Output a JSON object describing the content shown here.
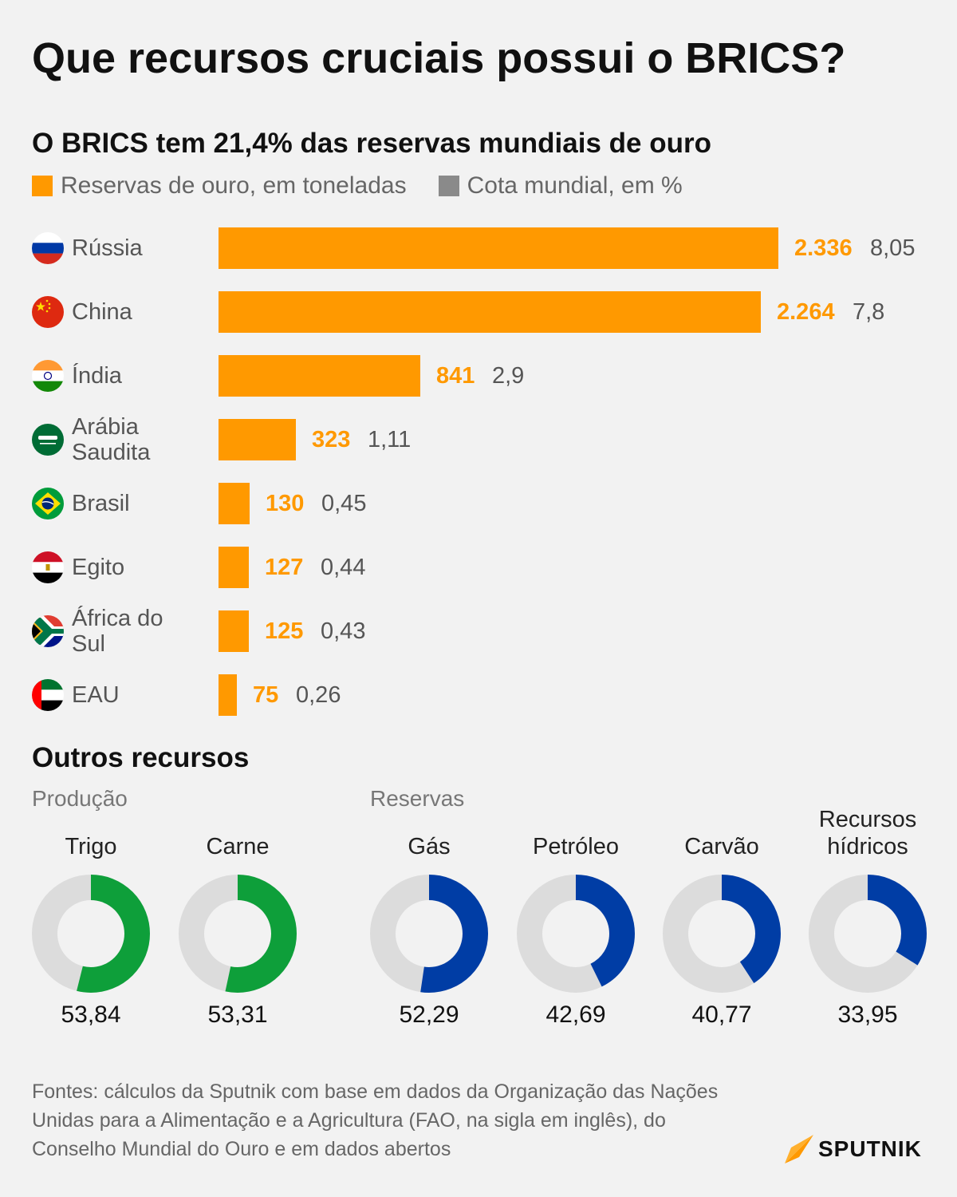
{
  "title": "Que recursos cruciais possui o BRICS?",
  "subtitle": "O BRICS tem 21,4% das reservas mundiais de ouro",
  "legend": {
    "reserves_label": "Reservas de ouro, em toneladas",
    "reserves_color": "#ff9900",
    "share_label": "Cota mundial, em %",
    "share_color": "#8a8a8a"
  },
  "chart_data": [
    {
      "type": "bar",
      "orientation": "horizontal",
      "title": "O BRICS tem 21,4% das reservas mundiais de ouro",
      "categories": [
        "Rússia",
        "China",
        "Índia",
        "Arábia Saudita",
        "Brasil",
        "Egito",
        "África do Sul",
        "EAU"
      ],
      "series": [
        {
          "name": "Reservas de ouro, em toneladas",
          "values": [
            2336,
            2264,
            841,
            323,
            130,
            127,
            125,
            75
          ],
          "labels": [
            "2.336",
            "2.264",
            "841",
            "323",
            "130",
            "127",
            "125",
            "75"
          ]
        },
        {
          "name": "Cota mundial, em %",
          "values": [
            8.05,
            7.8,
            2.9,
            1.11,
            0.45,
            0.44,
            0.43,
            0.26
          ],
          "labels": [
            "8,05",
            "7,8",
            "2,9",
            "1,11",
            "0,45",
            "0,44",
            "0,43",
            "0,26"
          ]
        }
      ]
    },
    {
      "type": "pie",
      "title": "Outros recursos",
      "groups": [
        {
          "name": "Produção",
          "items": [
            {
              "label": "Trigo",
              "value": 53.84,
              "value_label": "53,84",
              "color": "#0e9f3a"
            },
            {
              "label": "Carne",
              "value": 53.31,
              "value_label": "53,31",
              "color": "#0e9f3a"
            }
          ]
        },
        {
          "name": "Reservas",
          "items": [
            {
              "label": "Gás",
              "value": 52.29,
              "value_label": "52,29",
              "color": "#003da5"
            },
            {
              "label": "Petróleo",
              "value": 42.69,
              "value_label": "42,69",
              "color": "#003da5"
            },
            {
              "label": "Carvão",
              "value": 40.77,
              "value_label": "40,77",
              "color": "#003da5"
            },
            {
              "label": "Recursos hídricos",
              "value": 33.95,
              "value_label": "33,95",
              "color": "#003da5"
            }
          ]
        }
      ]
    }
  ],
  "countries": [
    "Rússia",
    "China",
    "Índia",
    "Arábia Saudita",
    "Brasil",
    "Egito",
    "África do Sul",
    "EAU"
  ],
  "country_lines": [
    [
      "Rússia"
    ],
    [
      "China"
    ],
    [
      "Índia"
    ],
    [
      "Arábia",
      "Saudita"
    ],
    [
      "Brasil"
    ],
    [
      "Egito"
    ],
    [
      "África do",
      "Sul"
    ],
    [
      "EAU"
    ]
  ],
  "section2_title": "Outros recursos",
  "production_label": "Produção",
  "reserves_label": "Reservas",
  "donut_labels": [
    [
      "Trigo"
    ],
    [
      "Carne"
    ],
    [
      "Gás"
    ],
    [
      "Petróleo"
    ],
    [
      "Carvão"
    ],
    [
      "Recursos",
      "hídricos"
    ]
  ],
  "source": "Fontes: cálculos da Sputnik com base em dados da Organização das Nações Unidas para a Alimentação e a Agricultura (FAO, na sigla em inglês), do Conselho Mundial do Ouro e em dados abertos",
  "logo_text": "SPUTNIK",
  "colors": {
    "orange": "#ff9900",
    "green": "#0e9f3a",
    "blue": "#003da5",
    "track": "#dcdcdc"
  }
}
